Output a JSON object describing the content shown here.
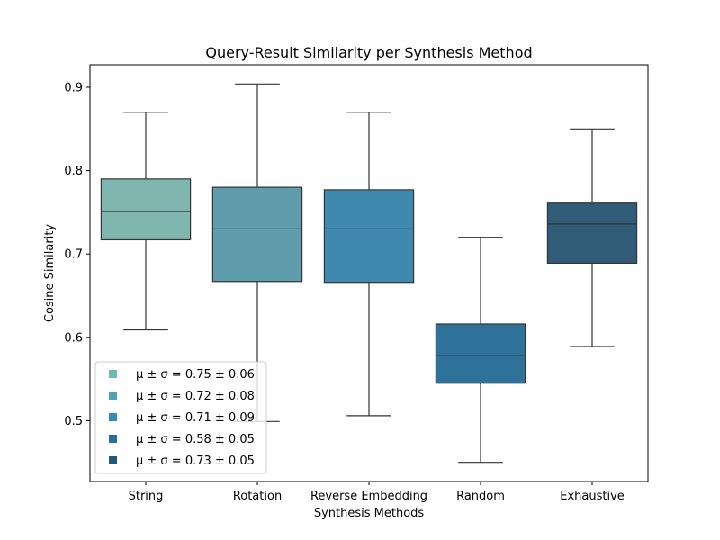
{
  "chart_data": {
    "type": "box",
    "title": "Query-Result Similarity per Synthesis Method",
    "xlabel": "Synthesis Methods",
    "ylabel": "Cosine Similarity",
    "ylim": [
      0.427,
      0.927
    ],
    "yticks": [
      "0.5",
      "0.6",
      "0.7",
      "0.8",
      "0.9"
    ],
    "grid": false,
    "legend_position": "lower-left",
    "categories": [
      "String",
      "Rotation",
      "Reverse Embedding",
      "Random",
      "Exhaustive"
    ],
    "boxes": [
      {
        "category": "String",
        "whisker_low": 0.609,
        "q1": 0.717,
        "median": 0.751,
        "q3": 0.79,
        "whisker_high": 0.87,
        "color": "#7fb6b0"
      },
      {
        "category": "Rotation",
        "whisker_low": 0.499,
        "q1": 0.667,
        "median": 0.73,
        "q3": 0.78,
        "whisker_high": 0.904,
        "color": "#5f9dac"
      },
      {
        "category": "Reverse Embedding",
        "whisker_low": 0.506,
        "q1": 0.666,
        "median": 0.73,
        "q3": 0.777,
        "whisker_high": 0.87,
        "color": "#3f89ae"
      },
      {
        "category": "Random",
        "whisker_low": 0.45,
        "q1": 0.545,
        "median": 0.578,
        "q3": 0.616,
        "whisker_high": 0.72,
        "color": "#2e729a"
      },
      {
        "category": "Exhaustive",
        "whisker_low": 0.589,
        "q1": 0.689,
        "median": 0.736,
        "q3": 0.761,
        "whisker_high": 0.85,
        "color": "#315c77"
      }
    ],
    "legend": [
      {
        "label": "μ ± σ = 0.75 ± 0.06",
        "color": "#6cbab3"
      },
      {
        "label": "μ ± σ = 0.72 ± 0.08",
        "color": "#4fa3b5"
      },
      {
        "label": "μ ± σ = 0.71 ± 0.09",
        "color": "#328eb8"
      },
      {
        "label": "μ ± σ = 0.58 ± 0.05",
        "color": "#22709e"
      },
      {
        "label": "μ ± σ = 0.73 ± 0.05",
        "color": "#1e5a7c"
      }
    ]
  }
}
